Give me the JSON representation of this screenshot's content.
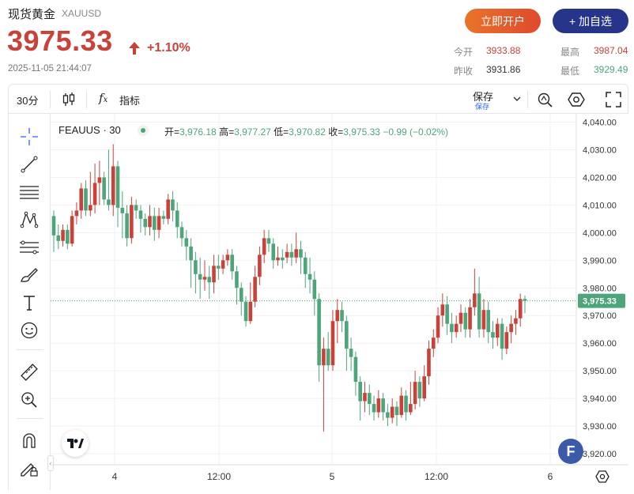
{
  "header": {
    "name": "现货黄金",
    "code": "XAUUSD",
    "price": "3975.33",
    "change_pct": "+1.10%",
    "timestamp": "2025-11-05 21:44:07",
    "open_button": "立即开户",
    "watch_button": "+ 加自选",
    "stats": {
      "open_label": "今开",
      "open_value": "3933.88",
      "high_label": "最高",
      "high_value": "3987.04",
      "prevclose_label": "昨收",
      "prevclose_value": "3931.86",
      "low_label": "最低",
      "low_value": "3929.49"
    },
    "colors": {
      "up": "#c9423a",
      "down": "#4ea57a",
      "accent": "#26348a"
    }
  },
  "toolbar": {
    "interval": "30分",
    "indicators": "指标",
    "save_label": "保存",
    "save_sub": "保存"
  },
  "sidebar": {
    "tools": [
      "crosshair-icon",
      "trendline-icon",
      "fib-lines-icon",
      "pattern-icon",
      "measure-lines-icon",
      "brush-icon",
      "text-icon",
      "emoji-icon",
      "ruler-icon",
      "zoom-in-icon",
      "magnet-icon",
      "lock-pencil-icon"
    ]
  },
  "legend": {
    "symbol": "FEAUUS · 30",
    "open_label": "开=",
    "open": "3,976.18",
    "high_label": "高=",
    "high": "3,977.27",
    "low_label": "低=",
    "low": "3,970.82",
    "close_label": "收=",
    "close": "3,975.33",
    "change": "−0.99 (−0.02%)"
  },
  "chart_data": {
    "type": "candlestick",
    "x_ticks": [
      "4",
      "12:00",
      "5",
      "12:00",
      "6"
    ],
    "y_ticks": [
      "4,040.00",
      "4,030.00",
      "4,020.00",
      "4,010.00",
      "4,000.00",
      "3,990.00",
      "3,980.00",
      "3,970.00",
      "3,960.00",
      "3,950.00",
      "3,940.00",
      "3,930.00",
      "3,920.00"
    ],
    "ylim": [
      3916,
      4043
    ],
    "last_price_label": "3,975.33",
    "last_price": 3975.33,
    "up_color": "#c9423a",
    "down_color": "#4ea57a",
    "candles": [
      [
        4006,
        3999,
        4008,
        3993
      ],
      [
        3999,
        3997,
        4003,
        3994
      ],
      [
        3997,
        4001,
        4003,
        3995
      ],
      [
        4001,
        3996,
        4003,
        3994
      ],
      [
        3996,
        4006,
        4008,
        3995
      ],
      [
        4006,
        4008,
        4011,
        4003
      ],
      [
        4008,
        4016,
        4018,
        4005
      ],
      [
        4016,
        4008,
        4019,
        4006
      ],
      [
        4008,
        4010,
        4022,
        4006
      ],
      [
        4010,
        4018,
        4025,
        4007
      ],
      [
        4018,
        4020,
        4026,
        4010
      ],
      [
        4020,
        4012,
        4022,
        4010
      ],
      [
        4012,
        4010,
        4030,
        4008
      ],
      [
        4010,
        4024,
        4032,
        4006
      ],
      [
        4024,
        4009,
        4026,
        4002
      ],
      [
        4009,
        4007,
        4015,
        3998
      ],
      [
        4007,
        3998,
        4010,
        3995
      ],
      [
        3998,
        4010,
        4013,
        3996
      ],
      [
        4010,
        4008,
        4012,
        4005
      ],
      [
        4008,
        4005,
        4010,
        4000
      ],
      [
        4005,
        4002,
        4007,
        3999
      ],
      [
        4002,
        4006,
        4010,
        3999
      ],
      [
        4006,
        4001,
        4009,
        3997
      ],
      [
        4001,
        4006,
        4009,
        3998
      ],
      [
        4006,
        4005,
        4008,
        4003
      ],
      [
        4005,
        4012,
        4014,
        4003
      ],
      [
        4012,
        4008,
        4015,
        4004
      ],
      [
        4008,
        4002,
        4011,
        3998
      ],
      [
        4002,
        3998,
        4004,
        3995
      ],
      [
        3998,
        3995,
        4001,
        3990
      ],
      [
        3995,
        3990,
        3998,
        3980
      ],
      [
        3990,
        3985,
        3993,
        3978
      ],
      [
        3985,
        3983,
        3991,
        3976
      ],
      [
        3983,
        3984,
        3990,
        3979
      ],
      [
        3984,
        3982,
        3988,
        3976
      ],
      [
        3982,
        3988,
        3992,
        3978
      ],
      [
        3988,
        3987,
        3992,
        3983
      ],
      [
        3987,
        3990,
        3992,
        3985
      ],
      [
        3990,
        3992,
        3994,
        3988
      ],
      [
        3992,
        3986,
        3994,
        3983
      ],
      [
        3986,
        3980,
        3988,
        3974
      ],
      [
        3980,
        3975,
        3982,
        3970
      ],
      [
        3975,
        3968,
        3977,
        3966
      ],
      [
        3968,
        3975,
        3982,
        3967
      ],
      [
        3975,
        3984,
        3988,
        3973
      ],
      [
        3984,
        3992,
        3995,
        3981
      ],
      [
        3992,
        3998,
        4001,
        3989
      ],
      [
        3998,
        3996,
        4001,
        3993
      ],
      [
        3996,
        3990,
        3998,
        3987
      ],
      [
        3990,
        3991,
        3995,
        3988
      ],
      [
        3991,
        3990,
        3994,
        3987
      ],
      [
        3991,
        3993,
        3996,
        3989
      ],
      [
        3993,
        3991,
        3996,
        3988
      ],
      [
        3991,
        3994,
        4000,
        3989
      ],
      [
        3994,
        3991,
        3997,
        3985
      ],
      [
        3991,
        3985,
        3993,
        3980
      ],
      [
        3985,
        3983,
        3991,
        3978
      ],
      [
        3983,
        3976,
        3986,
        3970
      ],
      [
        3976,
        3952,
        3978,
        3946
      ],
      [
        3952,
        3958,
        3962,
        3928
      ],
      [
        3958,
        3952,
        3964,
        3950
      ],
      [
        3952,
        3968,
        3972,
        3950
      ],
      [
        3968,
        3972,
        3976,
        3960
      ],
      [
        3972,
        3968,
        3975,
        3964
      ],
      [
        3968,
        3958,
        3970,
        3950
      ],
      [
        3958,
        3955,
        3962,
        3950
      ],
      [
        3955,
        3946,
        3957,
        3941
      ],
      [
        3946,
        3939,
        3948,
        3932
      ],
      [
        3939,
        3942,
        3946,
        3935
      ],
      [
        3942,
        3938,
        3945,
        3934
      ],
      [
        3938,
        3935,
        3941,
        3932
      ],
      [
        3935,
        3940,
        3943,
        3933
      ],
      [
        3940,
        3935,
        3942,
        3932
      ],
      [
        3935,
        3933,
        3938,
        3930
      ],
      [
        3933,
        3937,
        3940,
        3931
      ],
      [
        3937,
        3934,
        3939,
        3930
      ],
      [
        3934,
        3941,
        3944,
        3933
      ],
      [
        3941,
        3935,
        3943,
        3932
      ],
      [
        3935,
        3938,
        3946,
        3934
      ],
      [
        3938,
        3946,
        3950,
        3936
      ],
      [
        3946,
        3940,
        3948,
        3937
      ],
      [
        3940,
        3948,
        3952,
        3939
      ],
      [
        3948,
        3958,
        3961,
        3945
      ],
      [
        3958,
        3962,
        3965,
        3955
      ],
      [
        3962,
        3970,
        3973,
        3960
      ],
      [
        3970,
        3974,
        3978,
        3966
      ],
      [
        3974,
        3967,
        3977,
        3963
      ],
      [
        3967,
        3964,
        3971,
        3960
      ],
      [
        3964,
        3967,
        3970,
        3962
      ],
      [
        3967,
        3971,
        3974,
        3964
      ],
      [
        3971,
        3965,
        3973,
        3962
      ],
      [
        3965,
        3973,
        3976,
        3962
      ],
      [
        3973,
        3978,
        3987,
        3970
      ],
      [
        3978,
        3965,
        3984,
        3962
      ],
      [
        3965,
        3972,
        3976,
        3962
      ],
      [
        3972,
        3964,
        3975,
        3960
      ],
      [
        3964,
        3962,
        3968,
        3958
      ],
      [
        3962,
        3967,
        3969,
        3959
      ],
      [
        3967,
        3958,
        3969,
        3954
      ],
      [
        3958,
        3964,
        3966,
        3956
      ],
      [
        3964,
        3967,
        3970,
        3960
      ],
      [
        3967,
        3969,
        3972,
        3963
      ],
      [
        3969,
        3976,
        3978,
        3966
      ],
      [
        3976,
        3975.33,
        3977.27,
        3970.82
      ]
    ]
  }
}
